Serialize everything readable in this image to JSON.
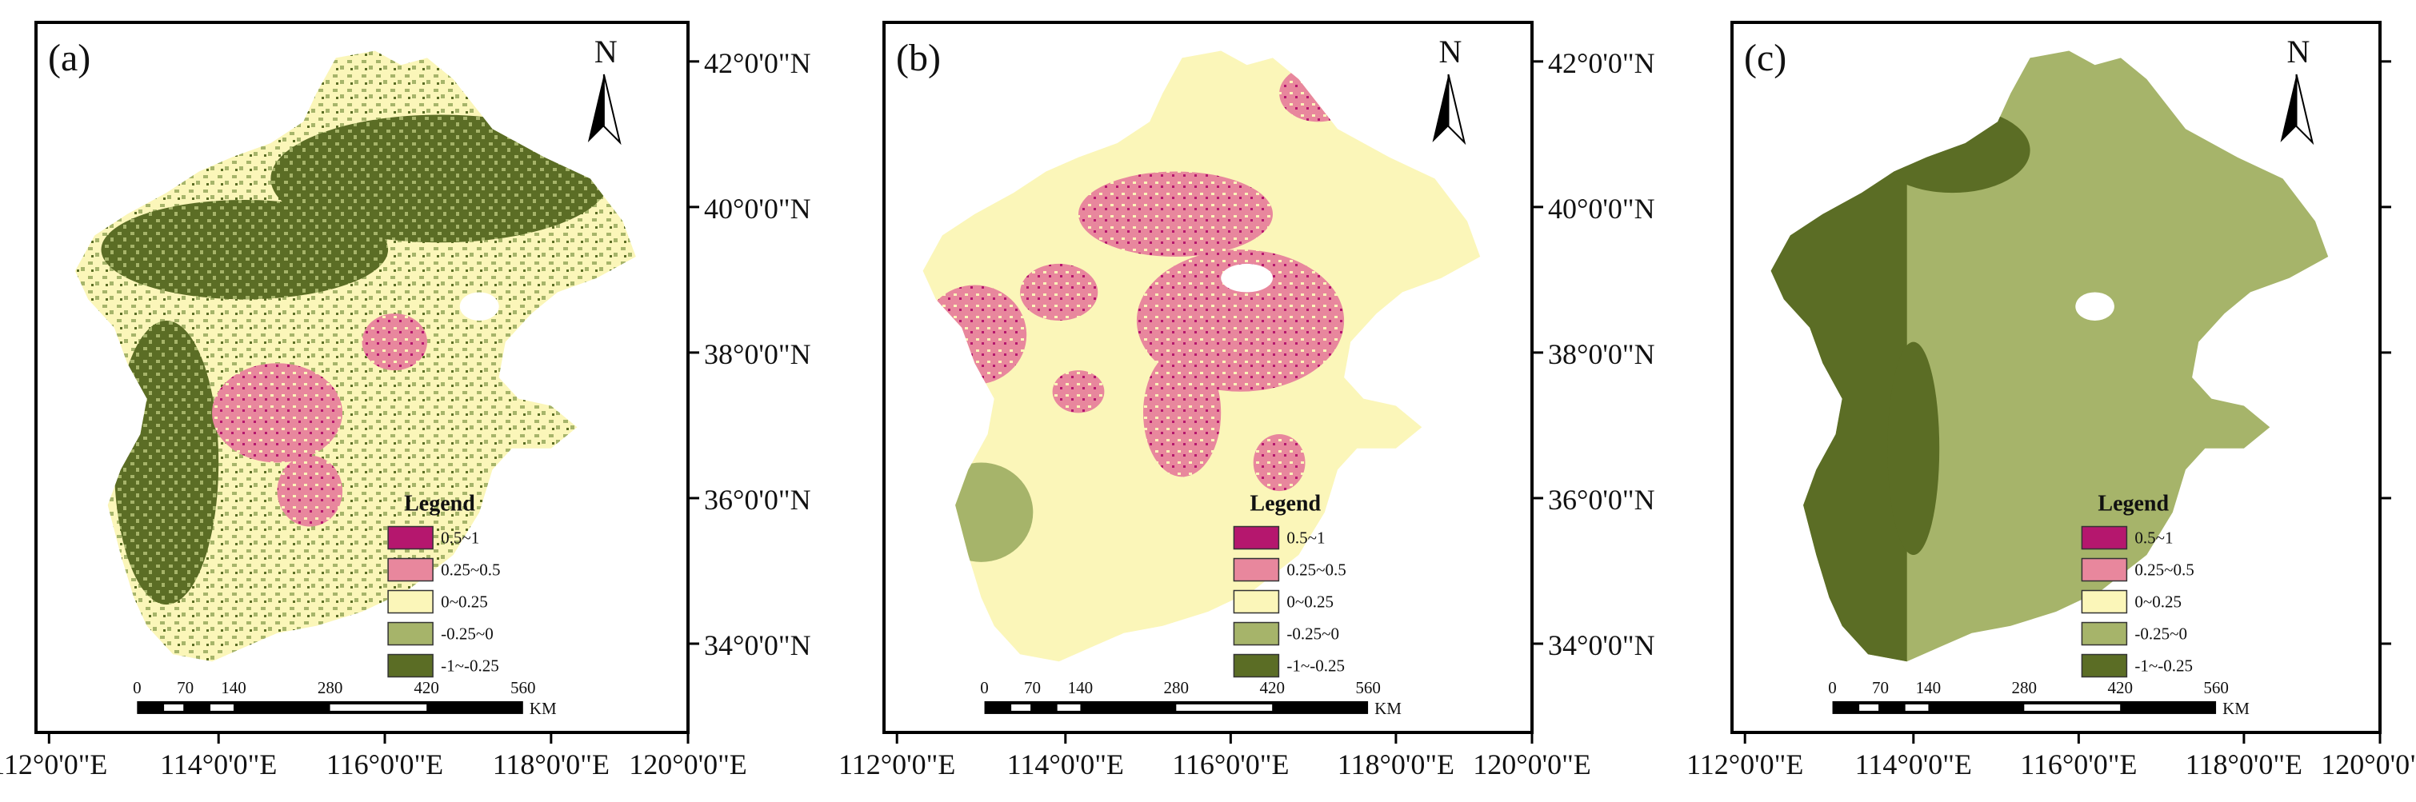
{
  "map_data": {
    "x_axis_labels": [
      "112°0'0\"E",
      "114°0'0\"E",
      "116°0'0\"E",
      "118°0'0\"E",
      "120°0'0\"E"
    ],
    "y_axis_labels": [
      "42°0'0\"N",
      "40°0'0\"N",
      "38°0'0\"N",
      "36°0'0\"N",
      "34°0'0\"N"
    ],
    "legend": {
      "title": "Legend",
      "classes": [
        {
          "label": "0.5~1",
          "color": "#b5176e"
        },
        {
          "label": "0.25~0.5",
          "color": "#e8879d"
        },
        {
          "label": "0~0.25",
          "color": "#fbf6b9"
        },
        {
          "label": "-0.25~0",
          "color": "#a6b46a"
        },
        {
          "label": "-1~-0.25",
          "color": "#5b6d25"
        }
      ]
    },
    "scale_bar": {
      "ticks": [
        "0",
        "70",
        "140",
        "280",
        "420",
        "560"
      ],
      "unit": "KM"
    },
    "north_arrow": {
      "letter": "N",
      "icon": "north-arrow-icon"
    },
    "panels": [
      {
        "label": "(a)",
        "dominant_class": "0~0.25"
      },
      {
        "label": "(b)",
        "dominant_class": "0~0.25"
      },
      {
        "label": "(c)",
        "dominant_class": "-0.25~0"
      }
    ]
  }
}
